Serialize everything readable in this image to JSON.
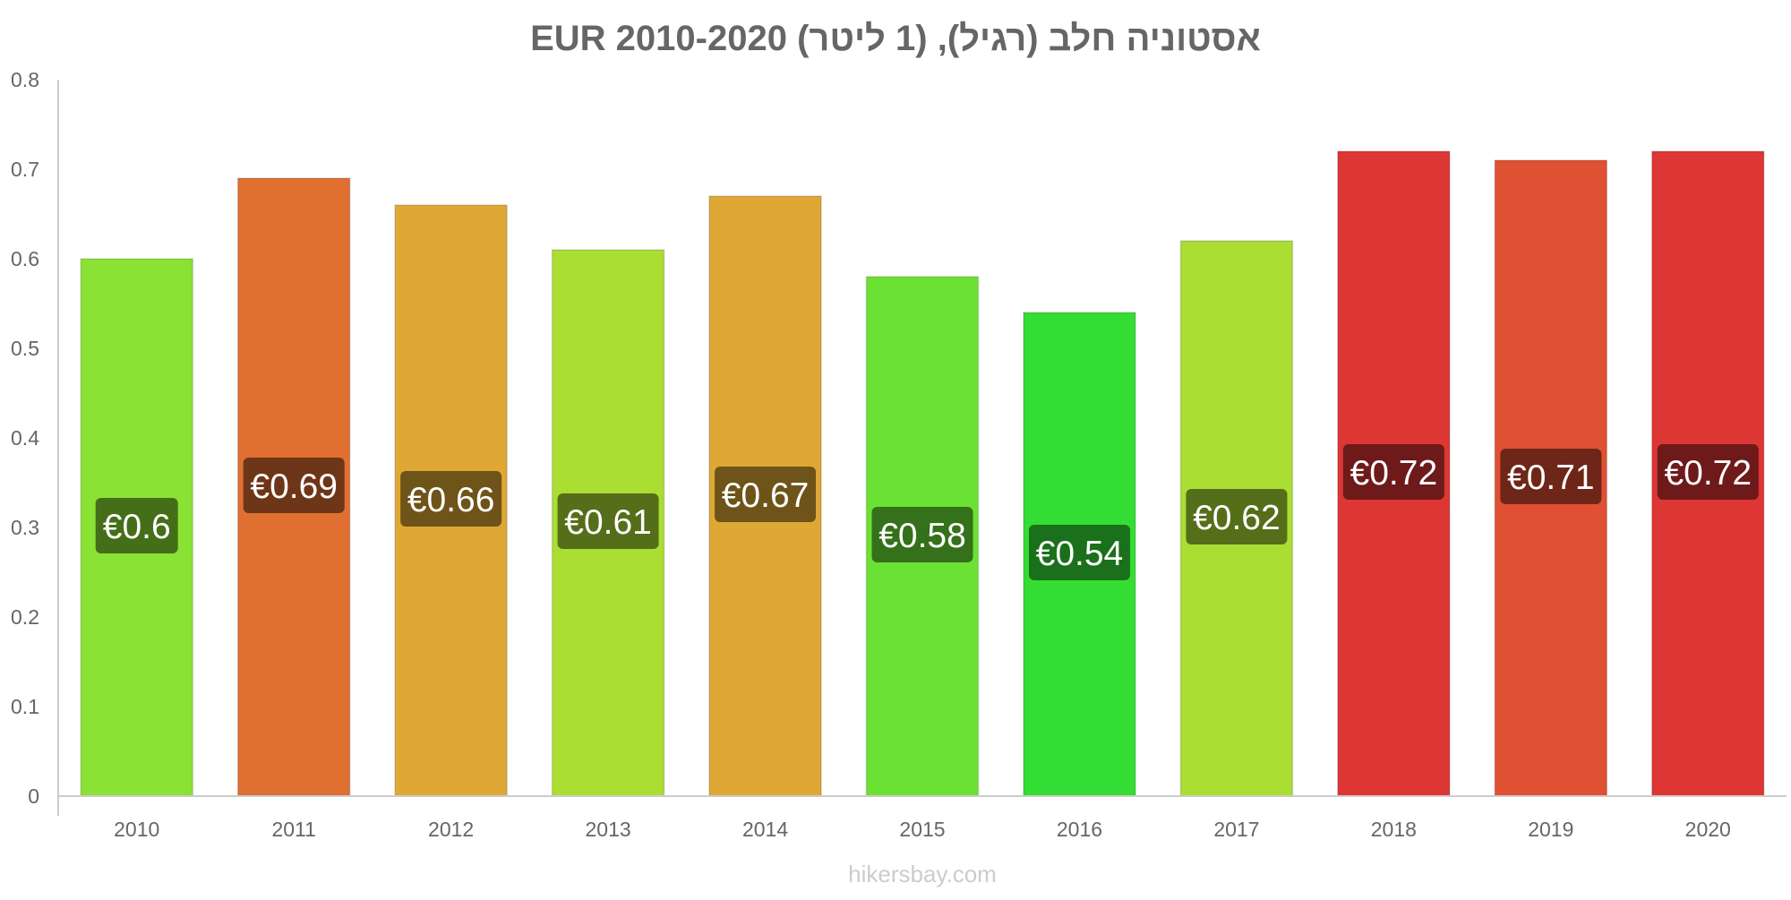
{
  "chart_data": {
    "type": "bar",
    "title": "אסטוניה חלב (רגיל), (1 ליטר) EUR 2010-2020",
    "categories": [
      "2010",
      "2011",
      "2012",
      "2013",
      "2014",
      "2015",
      "2016",
      "2017",
      "2018",
      "2019",
      "2020"
    ],
    "values": [
      0.6,
      0.69,
      0.66,
      0.61,
      0.67,
      0.58,
      0.54,
      0.62,
      0.72,
      0.71,
      0.72
    ],
    "data_labels": [
      "€0.6",
      "€0.69",
      "€0.66",
      "€0.61",
      "€0.67",
      "€0.58",
      "€0.54",
      "€0.62",
      "€0.72",
      "€0.71",
      "€0.72"
    ],
    "bar_colors": [
      "#8ae234",
      "#e07032",
      "#dfa835",
      "#aade33",
      "#dfa835",
      "#6be233",
      "#33dd33",
      "#aade33",
      "#de3535",
      "#e05032",
      "#de3535"
    ],
    "label_colors": [
      "#456e19",
      "#6e3618",
      "#6e5419",
      "#556e19",
      "#6e5419",
      "#35701a",
      "#1b701b",
      "#556e19",
      "#6e1a1a",
      "#6e2619",
      "#6e1a1a"
    ],
    "ylim": [
      0,
      0.8
    ],
    "yticks": [
      "0",
      "0.1",
      "0.2",
      "0.3",
      "0.4",
      "0.5",
      "0.6",
      "0.7",
      "0.8"
    ],
    "ytick_values": [
      0,
      0.1,
      0.2,
      0.3,
      0.4,
      0.5,
      0.6,
      0.7,
      0.8
    ],
    "grid": false,
    "xlabel": "",
    "ylabel": ""
  },
  "watermark": "hikersbay.com"
}
